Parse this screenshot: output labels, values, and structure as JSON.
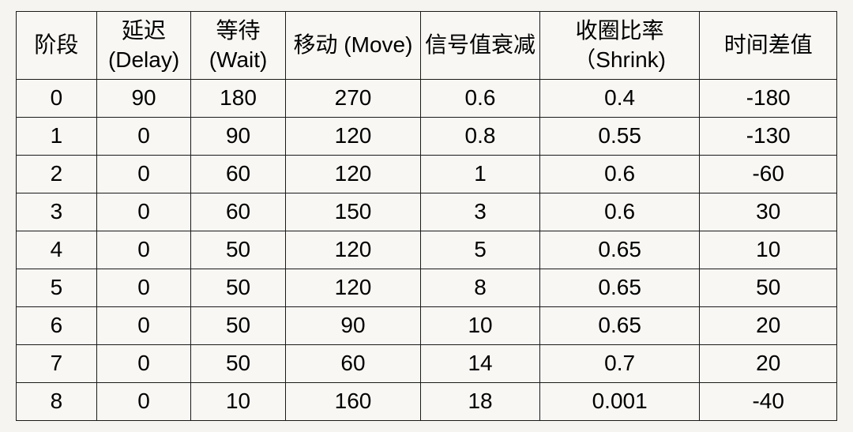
{
  "table": {
    "type": "table",
    "background_color": "#f8f7f3",
    "border_color": "#1a1a1a",
    "text_color": "#000000",
    "header_fontsize": 28,
    "cell_fontsize": 28,
    "column_widths_pct": [
      9.8,
      11.5,
      11.5,
      16.5,
      14.5,
      19.5,
      16.7
    ],
    "columns": [
      "阶段",
      "延迟 (Delay)",
      "等待 (Wait)",
      "移动  (Move)",
      "信号值衰减",
      "收圈比率（Shrink)",
      "时间差值"
    ],
    "rows": [
      [
        "0",
        "90",
        "180",
        "270",
        "0.6",
        "0.4",
        "-180"
      ],
      [
        "1",
        "0",
        "90",
        "120",
        "0.8",
        "0.55",
        "-130"
      ],
      [
        "2",
        "0",
        "60",
        "120",
        "1",
        "0.6",
        "-60"
      ],
      [
        "3",
        "0",
        "60",
        "150",
        "3",
        "0.6",
        "30"
      ],
      [
        "4",
        "0",
        "50",
        "120",
        "5",
        "0.65",
        "10"
      ],
      [
        "5",
        "0",
        "50",
        "120",
        "8",
        "0.65",
        "50"
      ],
      [
        "6",
        "0",
        "50",
        "90",
        "10",
        "0.65",
        "20"
      ],
      [
        "7",
        "0",
        "50",
        "60",
        "14",
        "0.7",
        "20"
      ],
      [
        "8",
        "0",
        "10",
        "160",
        "18",
        "0.001",
        "-40"
      ]
    ]
  }
}
